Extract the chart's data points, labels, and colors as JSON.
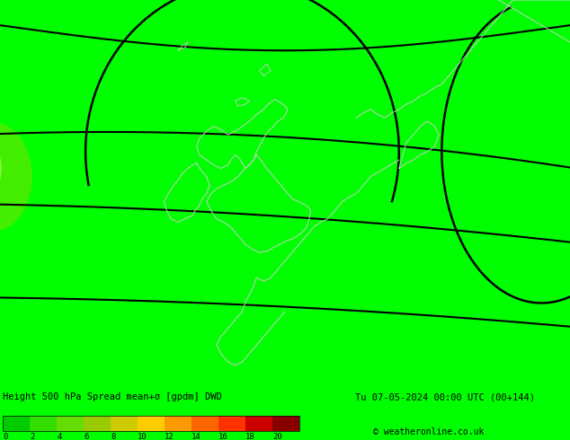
{
  "title": "Height 500 hPa Spread mean+σ [gpdm] DWD",
  "date_label": "Tu 07-05-2024 00:00 UTC (00+144)",
  "copyright": "© weatheronline.co.uk",
  "background_color": "#00ff00",
  "colorbar_values": [
    0,
    2,
    4,
    6,
    8,
    10,
    12,
    14,
    16,
    18,
    20
  ],
  "colorbar_colors": [
    "#00cc00",
    "#33dd00",
    "#66dd00",
    "#99cc00",
    "#cccc00",
    "#ffcc00",
    "#ff9900",
    "#ff6600",
    "#ff3300",
    "#cc0000",
    "#880000"
  ],
  "fig_width": 6.34,
  "fig_height": 4.9,
  "dpi": 100,
  "map_lon_min": -20.0,
  "map_lon_max": 20.0,
  "map_lat_min": 42.0,
  "map_lat_max": 65.0
}
